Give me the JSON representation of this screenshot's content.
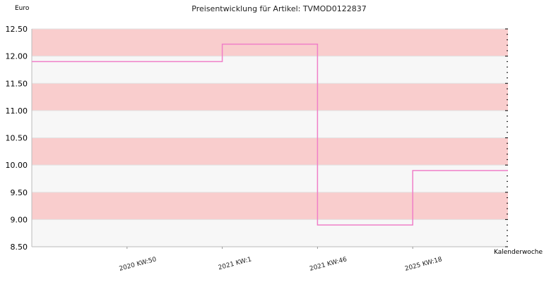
{
  "chart_data": {
    "type": "line",
    "step": true,
    "title": "Preisentwicklung für Artikel: TVMOD0122837",
    "ylabel": "Euro",
    "xlabel": "Kalenderwoche",
    "ylim": [
      8.5,
      12.5
    ],
    "y_ticks": [
      "12.50",
      "12.00",
      "11.50",
      "11.00",
      "10.50",
      "10.00",
      "9.50",
      "9.00",
      "8.50"
    ],
    "x_ticks": [
      {
        "label": "2020 KW:50",
        "x": 0.2
      },
      {
        "label": "2021 KW:1",
        "x": 0.4
      },
      {
        "label": "2021 KW:46",
        "x": 0.6
      },
      {
        "label": "2025 KW:18",
        "x": 0.8
      }
    ],
    "grid": true,
    "band_colors": [
      "#f9cdcd",
      "#f7f7f7"
    ],
    "line_color": "#f07fc8",
    "series": [
      {
        "points": [
          {
            "x": 0.0,
            "y": 11.9
          },
          {
            "x": 0.4,
            "y": 11.9
          },
          {
            "x": 0.4,
            "y": 12.22
          },
          {
            "x": 0.6,
            "y": 12.22
          },
          {
            "x": 0.6,
            "y": 8.9
          },
          {
            "x": 0.8,
            "y": 8.9
          },
          {
            "x": 0.8,
            "y": 9.9
          },
          {
            "x": 1.0,
            "y": 9.9
          }
        ]
      }
    ]
  }
}
